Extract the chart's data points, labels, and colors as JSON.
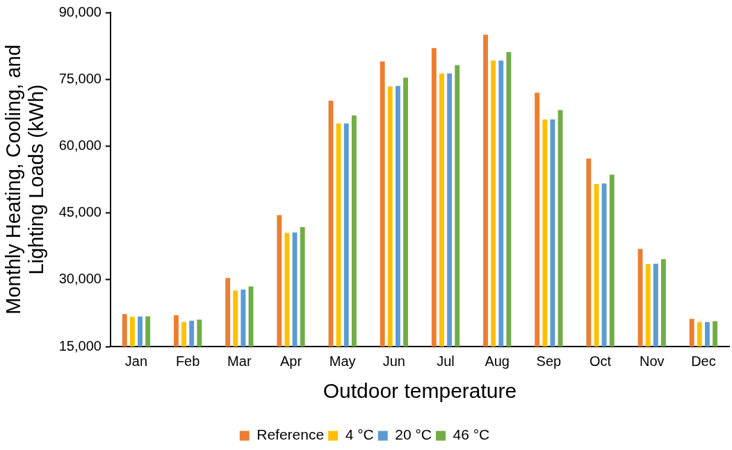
{
  "chart_data": {
    "type": "bar",
    "xlabel": "Outdoor temperature",
    "ylabel": "Monthly Heating, Cooling, and\nLighting Loads (kWh)",
    "categories": [
      "Jan",
      "Feb",
      "Mar",
      "Apr",
      "May",
      "Jun",
      "Jul",
      "Aug",
      "Sep",
      "Oct",
      "Nov",
      "Dec"
    ],
    "series": [
      {
        "name": "Reference",
        "color": "#ed7d31",
        "values": [
          22300,
          22000,
          30400,
          44500,
          70200,
          79000,
          82000,
          85000,
          72000,
          57200,
          36900,
          21200
        ]
      },
      {
        "name": "4 °C",
        "color": "#ffc000",
        "values": [
          21650,
          20500,
          27600,
          40500,
          65100,
          73400,
          76300,
          79200,
          66000,
          51500,
          33500,
          20500
        ]
      },
      {
        "name": "20 °C",
        "color": "#5b9bd5",
        "values": [
          21750,
          20800,
          27800,
          40600,
          65100,
          73500,
          76300,
          79200,
          66000,
          51600,
          33600,
          20500
        ]
      },
      {
        "name": "46 °C",
        "color": "#70ad47",
        "values": [
          21800,
          21050,
          28500,
          41800,
          66900,
          75400,
          78200,
          81100,
          68100,
          53600,
          34600,
          20700
        ]
      }
    ],
    "ylim": [
      15000,
      90000
    ],
    "yticks": [
      {
        "value": 15000,
        "label": "15,000"
      },
      {
        "value": 30000,
        "label": "30,000"
      },
      {
        "value": 45000,
        "label": "45,000"
      },
      {
        "value": 60000,
        "label": "60,000"
      },
      {
        "value": 75000,
        "label": "75,000"
      },
      {
        "value": 90000,
        "label": "90,000"
      }
    ],
    "grid": false,
    "legend": "bottom"
  }
}
